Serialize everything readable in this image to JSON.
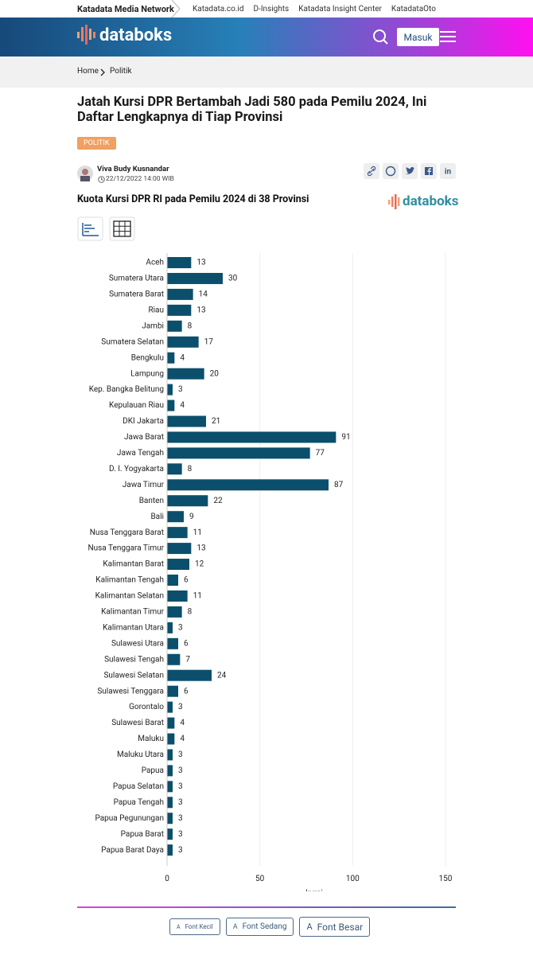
{
  "topbar": {
    "network": "Katadata Media Network",
    "links": [
      "Katadata.co.id",
      "D-Insights",
      "Katadata Insight Center",
      "KatadataOto"
    ]
  },
  "header": {
    "logo": "databoks",
    "login": "Masuk"
  },
  "breadcrumb": [
    "Home",
    "Politik"
  ],
  "article": {
    "title": "Jatah Kursi DPR Bertambah Jadi 580 pada Pemilu 2024, Ini Daftar Lengkapnya di Tiap Provinsi",
    "tag": "POLITIK",
    "author": "Viva Budy Kusnandar",
    "date": "22/12/2022 14:00 WIB"
  },
  "chart_data": {
    "type": "bar",
    "orientation": "horizontal",
    "title": "Kuota Kursi DPR RI pada Pemilu 2024 di 38 Provinsi",
    "brand": "databoks",
    "categories": [
      "Aceh",
      "Sumatera Utara",
      "Sumatera Barat",
      "Riau",
      "Jambi",
      "Sumatera Selatan",
      "Bengkulu",
      "Lampung",
      "Kep. Bangka Belitung",
      "Kepulauan Riau",
      "DKI Jakarta",
      "Jawa Barat",
      "Jawa Tengah",
      "D. I. Yogyakarta",
      "Jawa Timur",
      "Banten",
      "Bali",
      "Nusa Tenggara Barat",
      "Nusa Tenggara Timur",
      "Kalimantan Barat",
      "Kalimantan Tengah",
      "Kalimantan Selatan",
      "Kalimantan Timur",
      "Kalimantan Utara",
      "Sulawesi Utara",
      "Sulawesi Tengah",
      "Sulawesi Selatan",
      "Sulawesi Tenggara",
      "Gorontalo",
      "Sulawesi Barat",
      "Maluku",
      "Maluku Utara",
      "Papua",
      "Papua Selatan",
      "Papua Tengah",
      "Papua Pegunungan",
      "Papua Barat",
      "Papua Barat Daya"
    ],
    "values": [
      13,
      30,
      14,
      13,
      8,
      17,
      4,
      20,
      3,
      4,
      21,
      91,
      77,
      8,
      87,
      22,
      9,
      11,
      13,
      12,
      6,
      11,
      8,
      3,
      6,
      7,
      24,
      6,
      3,
      4,
      4,
      3,
      3,
      3,
      3,
      3,
      3,
      3
    ],
    "color": "#0b4f6c",
    "xlabel": "kursi",
    "xlim": [
      0,
      150
    ],
    "xticks": [
      0,
      50,
      100,
      150
    ],
    "grid": true
  },
  "font_buttons": [
    {
      "icon": "A",
      "label": "Font Kecil"
    },
    {
      "icon": "A",
      "label": "Font Sedang"
    },
    {
      "icon": "A",
      "label": "Font Besar"
    }
  ]
}
